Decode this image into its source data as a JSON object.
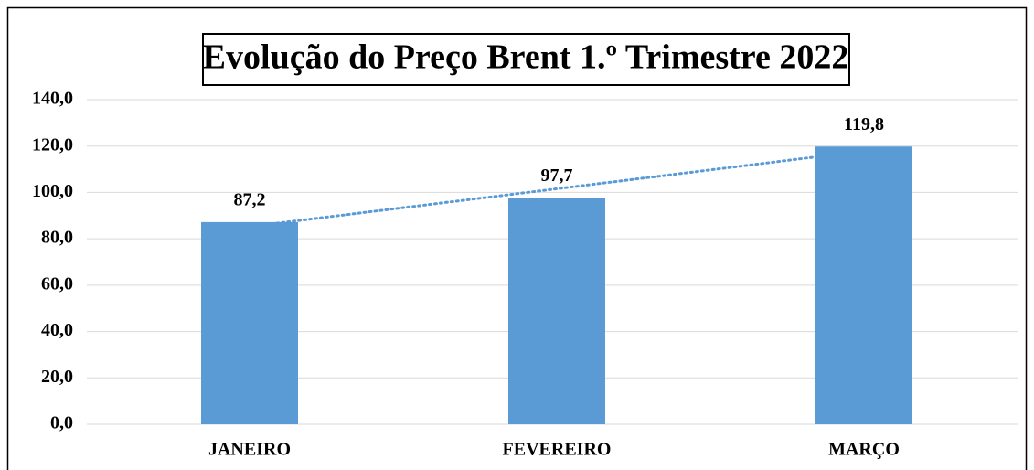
{
  "chart_data": {
    "type": "bar",
    "title": "Evolução do Preço Brent 1.º Trimestre 2022",
    "categories": [
      "JANEIRO",
      "FEVEREIRO",
      "MARÇO"
    ],
    "values": [
      87.2,
      97.7,
      119.8
    ],
    "value_labels": [
      "87,2",
      "97,7",
      "119,8"
    ],
    "color": "#5b9bd5",
    "trendline": {
      "type": "linear",
      "color": "#5b9bd5",
      "style": "dotted"
    },
    "ylim": [
      0,
      140
    ],
    "yticks": [
      {
        "value": 0,
        "label": "0,0"
      },
      {
        "value": 20,
        "label": "20,0"
      },
      {
        "value": 40,
        "label": "40,0"
      },
      {
        "value": 60,
        "label": "60,0"
      },
      {
        "value": 80,
        "label": "80,0"
      },
      {
        "value": 100,
        "label": "100,0"
      },
      {
        "value": 120,
        "label": "120,0"
      },
      {
        "value": 140,
        "label": "140,0"
      }
    ],
    "grid": true
  }
}
